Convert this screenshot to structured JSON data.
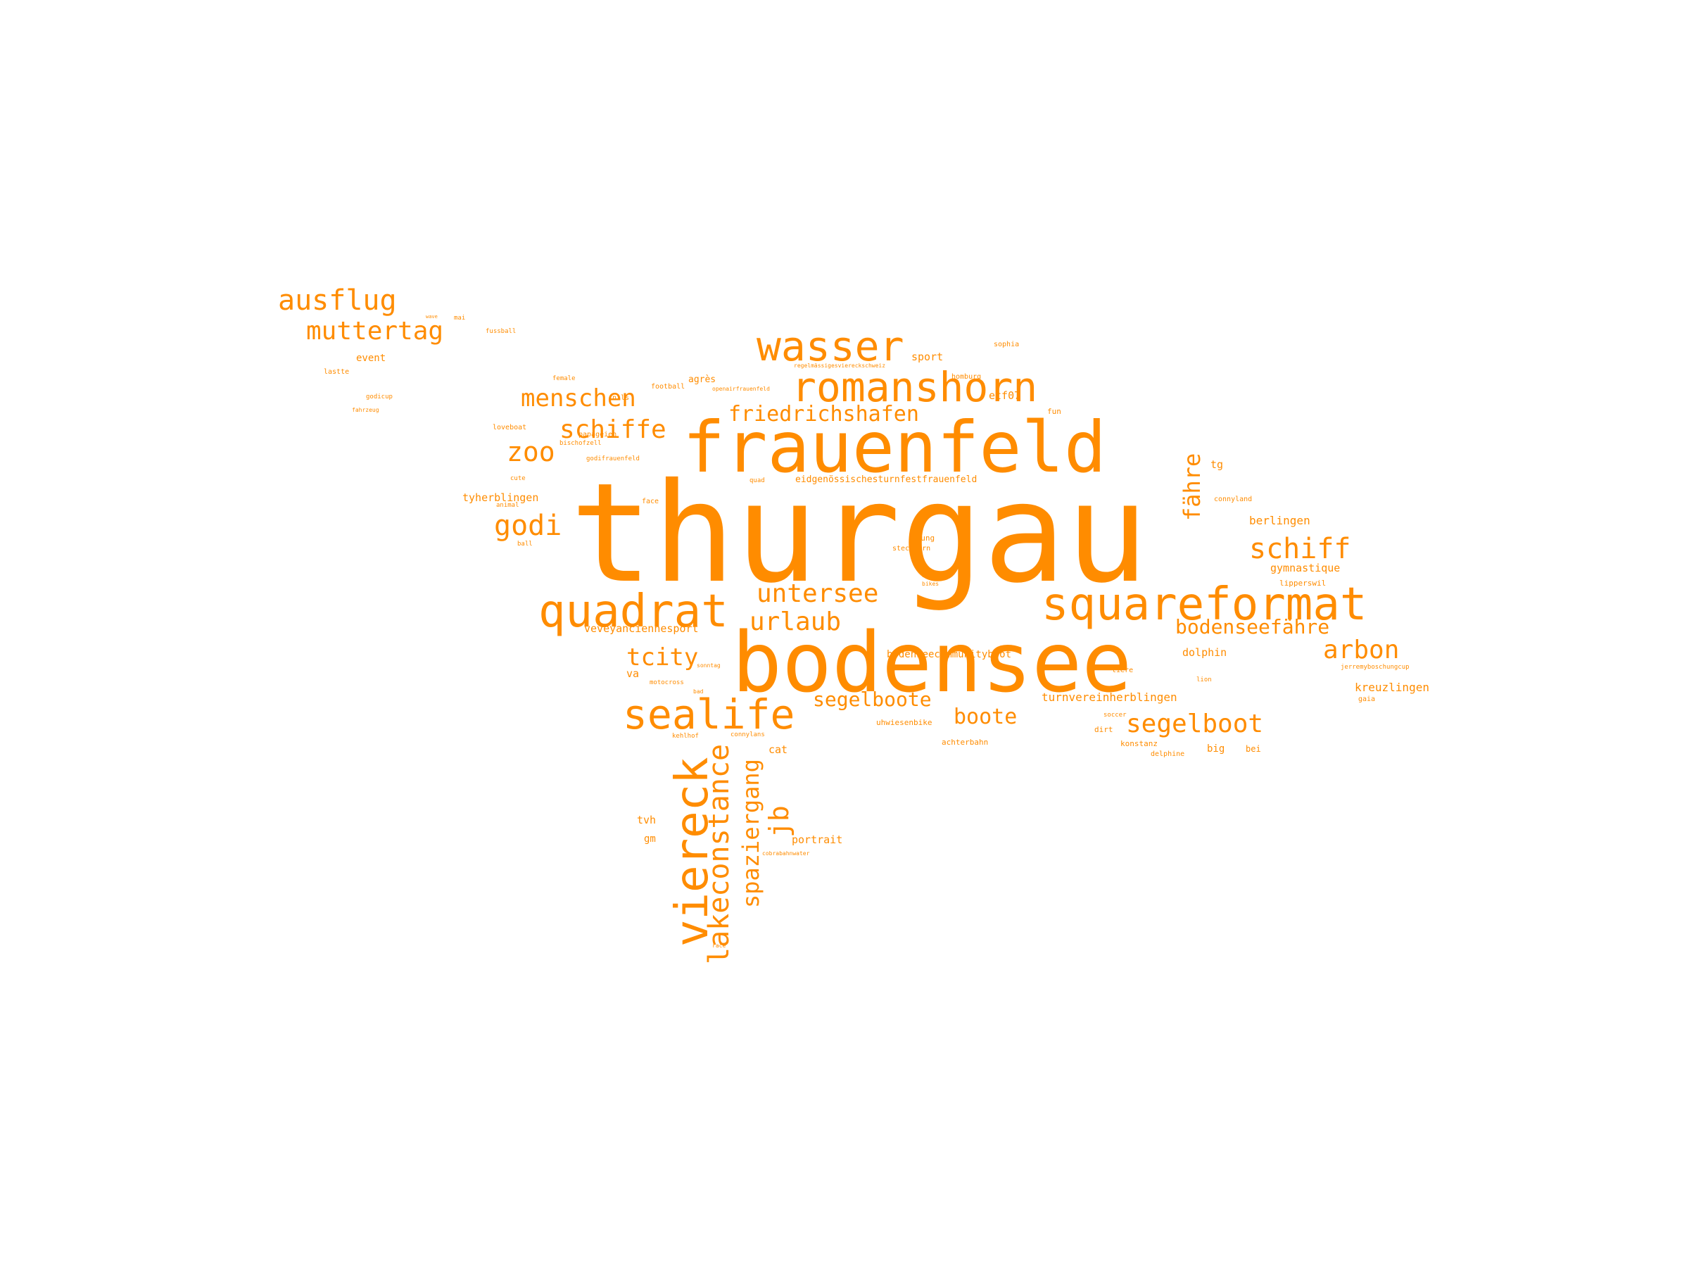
{
  "colors": {
    "word": "#FF8C00",
    "background": "#ffffff"
  },
  "words": {
    "thurgau": "thurgau",
    "bodensee": "bodensee",
    "frauenfeld": "frauenfeld",
    "romanshorn": "romanshorn",
    "wasser": "wasser",
    "squareformat": "squareformat",
    "quadrat": "quadrat",
    "sealife": "sealife",
    "viereck": "viereck",
    "lakeconstance": "lakeconstance",
    "spaziergang": "spaziergang",
    "ausflug": "ausflug",
    "muttertag": "muttertag",
    "menschen": "menschen",
    "schiffe": "schiffe",
    "zoo": "zoo",
    "friedrichshafen": "friedrichshafen",
    "godi": "godi",
    "untersee": "untersee",
    "urlaub": "urlaub",
    "tcity": "tcity",
    "schiff": "schiff",
    "bodenseefaehre": "bodenseefähre",
    "arbon": "arbon",
    "segelboot": "segelboot",
    "segelboote": "segelboote",
    "boote": "boote",
    "faehre": "fähre",
    "jb": "jb",
    "kreuzlingen": "kreuzlingen",
    "berlingen": "berlingen",
    "gymnastique": "gymnastique",
    "turnvereinherblingen": "turnvereinherblingen",
    "bodenseecommunityboot": "bodenseecommunityboot",
    "eidgenoessisch": "eidgenössischesturnfestfrauenfeld",
    "veveyanciennesport": "veveyanciennesport",
    "tyherblingen": "tyherblingen",
    "portrait": "portrait",
    "dolphin": "dolphin",
    "event": "event",
    "sport": "sport",
    "etf07": "etf07",
    "tg": "tg",
    "cat": "cat",
    "tvh": "tvh",
    "gm": "gm",
    "va": "va",
    "big": "big",
    "bei": "bei",
    "achterbahn": "achterbahn",
    "konstanz": "konstanz",
    "papageien": "papageien",
    "loveboat": "loveboat",
    "agres": "agrès",
    "homburg": "homburg",
    "sophia": "sophia",
    "godicup": "godicup",
    "fussball": "fussball",
    "steckborn": "steckborn",
    "young": "young",
    "football": "football",
    "female": "female",
    "lipperswil": "lipperswil",
    "motocross": "motocross",
    "cute": "cute",
    "animal": "animal",
    "face": "face",
    "gaia": "gaia",
    "connyland": "connyland",
    "delphine": "delphine",
    "dirt": "dirt",
    "soccer": "soccer",
    "fun": "fun",
    "nils": "nils",
    "quad": "quad",
    "mai": "mai",
    "laster": "lastte",
    "uhwiesenbike": "uhwiesenbike",
    "kehlhof": "kehlhof",
    "bischofzell": "bischofzell",
    "wasserspiele": "wasserspiele",
    "godifrauenfeld": "godifrauenfeld",
    "regelmaessig": "regelmässigesviereckschweiz",
    "openairfrauenfeld": "openairfrauenfeld",
    "jerremyboschungcup": "jerremyboschungcup",
    "cobrabahnwater": "cobrabahnwater",
    "race": "race",
    "sonntag": "sonntag",
    "bikes": "bikes",
    "tiere": "tiere",
    "fahrzeug": "fahrzeug",
    "sand": "sand",
    "lion": "lion",
    "ball": "ball",
    "bad": "bad",
    "connylans": "connylans",
    "wave": "wave"
  }
}
